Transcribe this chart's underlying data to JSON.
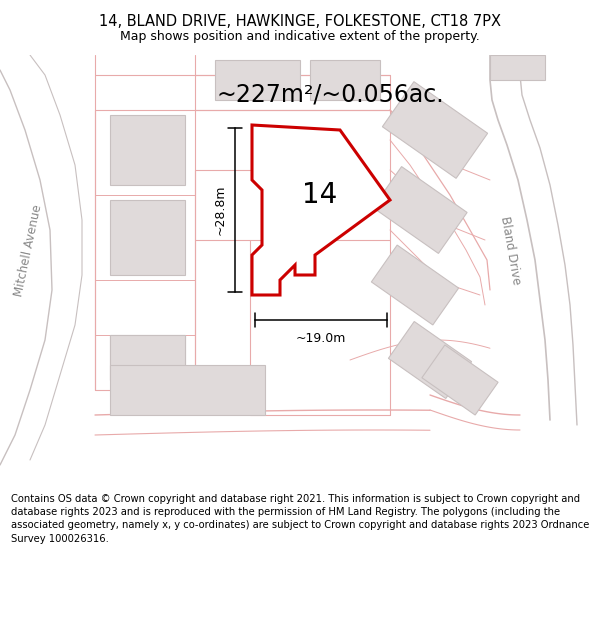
{
  "title": "14, BLAND DRIVE, HAWKINGE, FOLKESTONE, CT18 7PX",
  "subtitle": "Map shows position and indicative extent of the property.",
  "area_label": "~227m²/~0.056ac.",
  "property_number": "14",
  "dim_h": "~19.0m",
  "dim_v": "~28.8m",
  "street_label_left": "Mitchell Avenue",
  "street_label_right": "Bland Drive",
  "copyright": "Contains OS data © Crown copyright and database right 2021. This information is subject to Crown copyright and database rights 2023 and is reproduced with the permission of HM Land Registry. The polygons (including the associated geometry, namely x, y co-ordinates) are subject to Crown copyright and database rights 2023 Ordnance Survey 100026316.",
  "map_bg": "#faf8f8",
  "property_edge": "#cc0000",
  "road_color": "#e8aaaa",
  "road_color2": "#d09090",
  "building_fill": "#e0dada",
  "building_edge": "#c8c0c0",
  "grey_road_color": "#c8c0c0",
  "title_fontsize": 10.5,
  "subtitle_fontsize": 9,
  "area_fontsize": 17,
  "number_fontsize": 20,
  "dim_fontsize": 9,
  "copyright_fontsize": 7.2,
  "street_label_fontsize": 8.5
}
